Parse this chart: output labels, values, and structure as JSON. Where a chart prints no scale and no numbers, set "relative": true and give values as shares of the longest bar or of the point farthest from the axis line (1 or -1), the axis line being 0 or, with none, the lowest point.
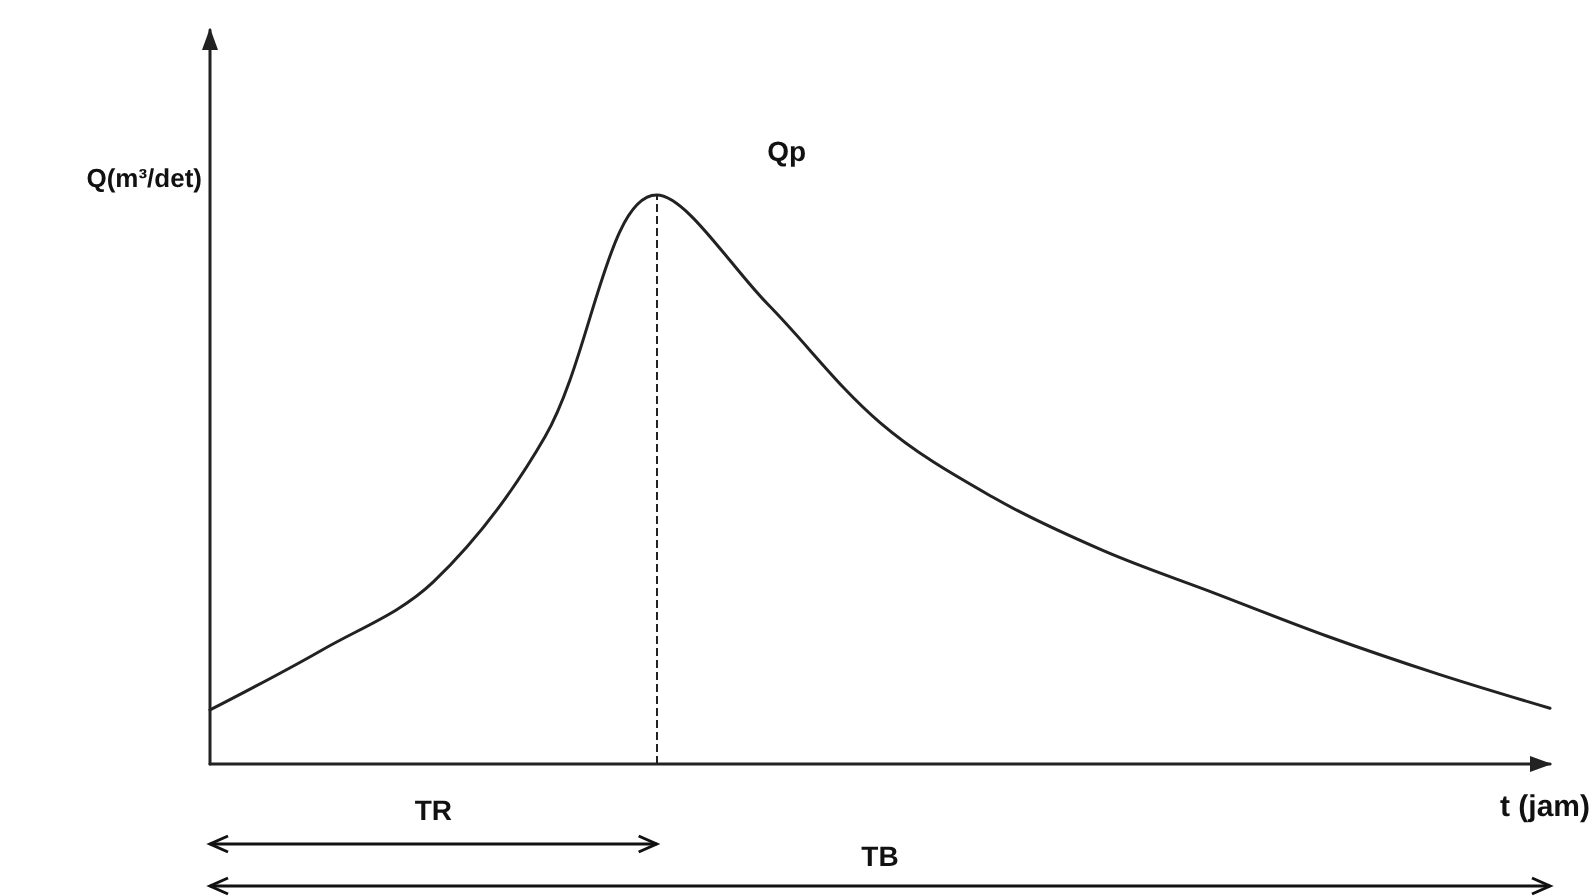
{
  "chart_data": {
    "type": "line",
    "relative": true,
    "xlabel": "t (jam)",
    "ylabel": "Q(m³/det)",
    "categories": [
      null,
      null,
      null,
      null,
      null,
      null,
      null,
      null,
      null,
      null,
      null,
      null,
      null
    ],
    "values": [
      0.095,
      0.2,
      0.32,
      0.575,
      1,
      0.807,
      0.6,
      0.47,
      0.375,
      0.3,
      0.225,
      0.158,
      0.098
    ],
    "color": "#222222",
    "marker": "none",
    "line_style": "solid",
    "annotations": [
      "Qp",
      "TR",
      "TB"
    ]
  }
}
